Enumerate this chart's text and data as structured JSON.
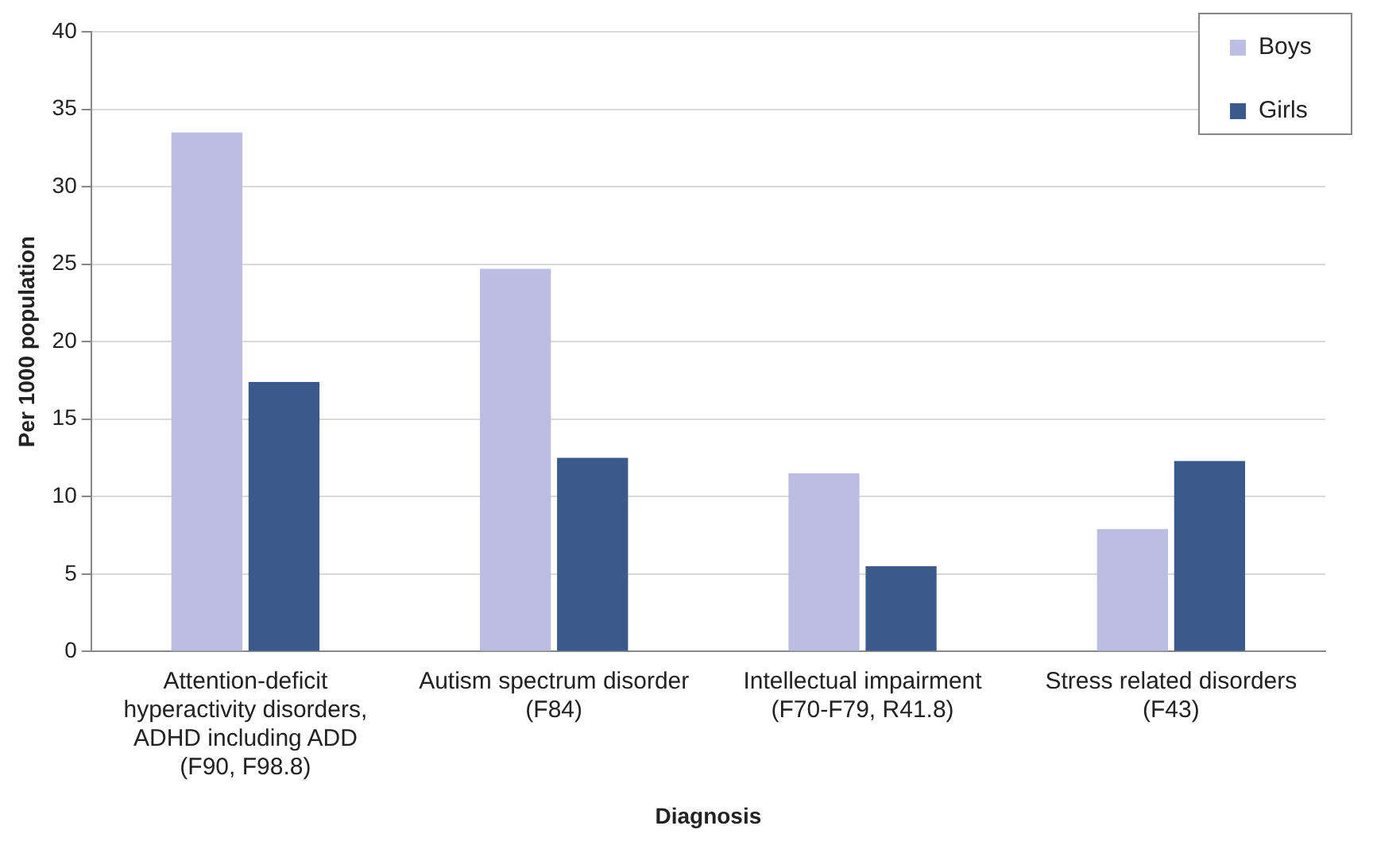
{
  "chart_data": {
    "type": "bar",
    "xlabel": "Diagnosis",
    "ylabel": "Per 1000 population",
    "categories": [
      "Attention-deficit hyperactivity disorders, ADHD including ADD (F90, F98.8)",
      "Autism spectrum disorder (F84)",
      "Intellectual impairment (F70-F79, R41.8)",
      "Stress related disorders (F43)"
    ],
    "series": [
      {
        "name": "Boys",
        "color": "#bcbde3",
        "values": [
          33.5,
          24.7,
          11.5,
          7.9
        ]
      },
      {
        "name": "Girls",
        "color": "#3a5a8c",
        "values": [
          17.4,
          12.5,
          5.5,
          12.3
        ]
      }
    ],
    "ylim": [
      0,
      40
    ],
    "yticks": [
      0,
      5,
      10,
      15,
      20,
      25,
      30,
      35,
      40
    ],
    "grid": "y",
    "legend": "top right"
  }
}
